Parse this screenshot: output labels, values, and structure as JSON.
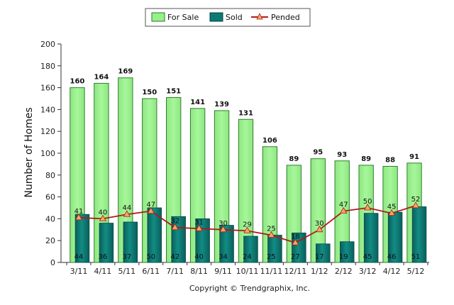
{
  "chart_data": {
    "type": "bar",
    "categories": [
      "3/11",
      "4/11",
      "5/11",
      "6/11",
      "7/11",
      "8/11",
      "9/11",
      "10/11",
      "11/11",
      "12/11",
      "1/12",
      "2/12",
      "3/12",
      "4/12",
      "5/12"
    ],
    "series": [
      {
        "name": "For Sale",
        "type": "bar",
        "color": "#98f08a",
        "values": [
          160,
          164,
          169,
          150,
          151,
          141,
          139,
          131,
          106,
          89,
          95,
          93,
          89,
          88,
          91
        ]
      },
      {
        "name": "Sold",
        "type": "bar",
        "color": "#0c7a74",
        "values": [
          44,
          36,
          37,
          50,
          42,
          40,
          34,
          24,
          25,
          27,
          17,
          19,
          45,
          46,
          51
        ]
      },
      {
        "name": "Pended",
        "type": "line",
        "color": "#b11a1a",
        "marker_color": "#f0a860",
        "values": [
          41,
          40,
          44,
          47,
          32,
          31,
          30,
          29,
          25,
          18,
          30,
          47,
          50,
          45,
          52
        ]
      }
    ],
    "ylabel": "Number of Homes",
    "xlabel": "",
    "ylim": [
      0,
      200
    ],
    "yticks": [
      0,
      20,
      40,
      60,
      80,
      100,
      120,
      140,
      160,
      180,
      200
    ],
    "legend_position": "top-center",
    "grid": false
  },
  "copyright": "Copyright © Trendgraphix, Inc."
}
